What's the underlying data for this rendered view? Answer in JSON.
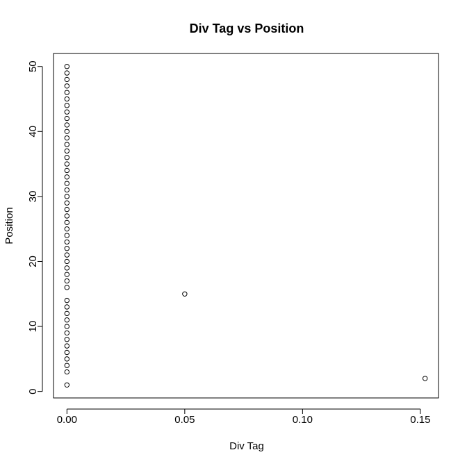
{
  "chart_data": {
    "type": "scatter",
    "title": "Div Tag vs Position",
    "xlabel": "Div Tag",
    "ylabel": "Position",
    "xlim": [
      -0.0057,
      0.1577
    ],
    "ylim": [
      -1.0,
      52.0
    ],
    "x_ticks": [
      0.0,
      0.05,
      0.1,
      0.15
    ],
    "x_tick_labels": [
      "0.00",
      "0.05",
      "0.10",
      "0.15"
    ],
    "y_ticks": [
      0,
      10,
      20,
      30,
      40,
      50
    ],
    "y_tick_labels": [
      "0",
      "10",
      "20",
      "30",
      "40",
      "50"
    ],
    "grid": false,
    "legend": false,
    "series": [
      {
        "points": [
          [
            0.0,
            1
          ],
          [
            0.152,
            2
          ],
          [
            0.0,
            3
          ],
          [
            0.0,
            4
          ],
          [
            0.0,
            5
          ],
          [
            0.0,
            6
          ],
          [
            0.0,
            7
          ],
          [
            0.0,
            8
          ],
          [
            0.0,
            9
          ],
          [
            0.0,
            10
          ],
          [
            0.0,
            11
          ],
          [
            0.0,
            12
          ],
          [
            0.0,
            13
          ],
          [
            0.0,
            14
          ],
          [
            0.05,
            15
          ],
          [
            0.0,
            16
          ],
          [
            0.0,
            17
          ],
          [
            0.0,
            18
          ],
          [
            0.0,
            19
          ],
          [
            0.0,
            20
          ],
          [
            0.0,
            21
          ],
          [
            0.0,
            22
          ],
          [
            0.0,
            23
          ],
          [
            0.0,
            24
          ],
          [
            0.0,
            25
          ],
          [
            0.0,
            26
          ],
          [
            0.0,
            27
          ],
          [
            0.0,
            28
          ],
          [
            0.0,
            29
          ],
          [
            0.0,
            30
          ],
          [
            0.0,
            31
          ],
          [
            0.0,
            32
          ],
          [
            0.0,
            33
          ],
          [
            0.0,
            34
          ],
          [
            0.0,
            35
          ],
          [
            0.0,
            36
          ],
          [
            0.0,
            37
          ],
          [
            0.0,
            38
          ],
          [
            0.0,
            39
          ],
          [
            0.0,
            40
          ],
          [
            0.0,
            41
          ],
          [
            0.0,
            42
          ],
          [
            0.0,
            43
          ],
          [
            0.0,
            44
          ],
          [
            0.0,
            45
          ],
          [
            0.0,
            46
          ],
          [
            0.0,
            47
          ],
          [
            0.0,
            48
          ],
          [
            0.0,
            49
          ],
          [
            0.0,
            50
          ]
        ]
      }
    ]
  }
}
